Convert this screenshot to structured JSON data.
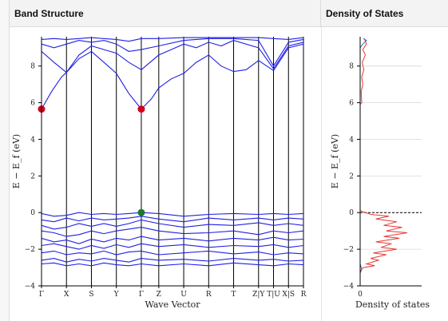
{
  "panels": {
    "band_title": "Band Structure",
    "dos_title": "Density of States"
  },
  "chart_data": [
    {
      "type": "line",
      "title": "Band Structure",
      "xlabel": "Wave Vector",
      "ylabel": "E − E_f (eV)",
      "ylim": [
        -4,
        9.6
      ],
      "yticks": [
        -4,
        -2,
        0,
        2,
        4,
        6,
        8
      ],
      "kpoint_labels": [
        "Γ",
        "X",
        "S",
        "Y",
        "Γ",
        "Z",
        "U",
        "R",
        "T",
        "Z|Y",
        "T|U",
        "X|S",
        "R"
      ],
      "kpoint_positions": [
        0,
        1,
        2,
        3,
        4,
        4.7,
        5.7,
        6.7,
        7.7,
        8.7,
        9.3,
        9.9,
        10.5
      ],
      "band_color": "#1f1fe6",
      "bands": [
        [
          [
            0,
            -0.05
          ],
          [
            0.5,
            -0.2
          ],
          [
            1,
            -0.15
          ],
          [
            1.5,
            0.0
          ],
          [
            2,
            -0.1
          ],
          [
            2.5,
            -0.05
          ],
          [
            3,
            -0.1
          ],
          [
            3.5,
            -0.05
          ],
          [
            4,
            0.0
          ],
          [
            4.7,
            -0.05
          ],
          [
            5.7,
            -0.2
          ],
          [
            6.7,
            -0.1
          ],
          [
            7.7,
            -0.05
          ],
          [
            8.7,
            -0.1
          ],
          [
            9.3,
            -0.05
          ],
          [
            9.9,
            -0.1
          ],
          [
            10.5,
            -0.05
          ]
        ],
        [
          [
            0,
            -0.4
          ],
          [
            0.5,
            -0.5
          ],
          [
            1,
            -0.3
          ],
          [
            1.5,
            -0.45
          ],
          [
            2,
            -0.3
          ],
          [
            2.5,
            -0.4
          ],
          [
            3,
            -0.35
          ],
          [
            3.5,
            -0.3
          ],
          [
            4,
            -0.2
          ],
          [
            4.7,
            -0.35
          ],
          [
            5.7,
            -0.5
          ],
          [
            6.7,
            -0.3
          ],
          [
            7.7,
            -0.4
          ],
          [
            8.7,
            -0.3
          ],
          [
            9.3,
            -0.4
          ],
          [
            9.9,
            -0.3
          ],
          [
            10.5,
            -0.35
          ]
        ],
        [
          [
            0,
            -0.7
          ],
          [
            0.5,
            -0.9
          ],
          [
            1,
            -0.8
          ],
          [
            1.5,
            -0.6
          ],
          [
            2,
            -0.75
          ],
          [
            2.5,
            -0.6
          ],
          [
            3,
            -0.75
          ],
          [
            3.5,
            -0.6
          ],
          [
            4,
            -0.4
          ],
          [
            4.7,
            -0.6
          ],
          [
            5.7,
            -0.8
          ],
          [
            6.7,
            -0.65
          ],
          [
            7.7,
            -0.7
          ],
          [
            8.7,
            -0.55
          ],
          [
            9.3,
            -0.7
          ],
          [
            9.9,
            -0.6
          ],
          [
            10.5,
            -0.7
          ]
        ],
        [
          [
            0,
            -1.0
          ],
          [
            0.5,
            -1.1
          ],
          [
            1,
            -1.3
          ],
          [
            1.5,
            -1.2
          ],
          [
            2,
            -1.0
          ],
          [
            2.5,
            -1.15
          ],
          [
            3,
            -1.0
          ],
          [
            3.5,
            -0.9
          ],
          [
            4,
            -0.8
          ],
          [
            4.7,
            -1.0
          ],
          [
            5.7,
            -1.15
          ],
          [
            6.7,
            -1.1
          ],
          [
            7.7,
            -1.0
          ],
          [
            8.7,
            -1.2
          ],
          [
            9.3,
            -1.0
          ],
          [
            9.9,
            -1.1
          ],
          [
            10.5,
            -1.0
          ]
        ],
        [
          [
            0,
            -1.4
          ],
          [
            0.5,
            -1.6
          ],
          [
            1,
            -1.5
          ],
          [
            1.5,
            -1.7
          ],
          [
            2,
            -1.45
          ],
          [
            2.5,
            -1.6
          ],
          [
            3,
            -1.4
          ],
          [
            3.5,
            -1.5
          ],
          [
            4,
            -1.3
          ],
          [
            4.7,
            -1.5
          ],
          [
            5.7,
            -1.4
          ],
          [
            6.7,
            -1.55
          ],
          [
            7.7,
            -1.4
          ],
          [
            8.7,
            -1.5
          ],
          [
            9.3,
            -1.35
          ],
          [
            9.9,
            -1.5
          ],
          [
            10.5,
            -1.45
          ]
        ],
        [
          [
            0,
            -1.8
          ],
          [
            0.5,
            -1.7
          ],
          [
            1,
            -1.85
          ],
          [
            1.5,
            -2.0
          ],
          [
            2,
            -1.8
          ],
          [
            2.5,
            -1.95
          ],
          [
            3,
            -1.75
          ],
          [
            3.5,
            -1.9
          ],
          [
            4,
            -1.7
          ],
          [
            4.7,
            -1.85
          ],
          [
            5.7,
            -1.75
          ],
          [
            6.7,
            -1.9
          ],
          [
            7.7,
            -1.8
          ],
          [
            8.7,
            -1.85
          ],
          [
            9.3,
            -1.75
          ],
          [
            9.9,
            -1.9
          ],
          [
            10.5,
            -1.8
          ]
        ],
        [
          [
            0,
            -2.2
          ],
          [
            0.5,
            -2.1
          ],
          [
            1,
            -2.3
          ],
          [
            1.5,
            -2.2
          ],
          [
            2,
            -2.25
          ],
          [
            2.5,
            -2.1
          ],
          [
            3,
            -2.3
          ],
          [
            3.5,
            -2.15
          ],
          [
            4,
            -2.1
          ],
          [
            4.7,
            -2.3
          ],
          [
            5.7,
            -2.2
          ],
          [
            6.7,
            -2.1
          ],
          [
            7.7,
            -2.25
          ],
          [
            8.7,
            -2.15
          ],
          [
            9.3,
            -2.3
          ],
          [
            9.9,
            -2.2
          ],
          [
            10.5,
            -2.25
          ]
        ],
        [
          [
            0,
            -2.6
          ],
          [
            0.5,
            -2.5
          ],
          [
            1,
            -2.7
          ],
          [
            1.5,
            -2.55
          ],
          [
            2,
            -2.65
          ],
          [
            2.5,
            -2.5
          ],
          [
            3,
            -2.6
          ],
          [
            3.5,
            -2.7
          ],
          [
            4,
            -2.5
          ],
          [
            4.7,
            -2.6
          ],
          [
            5.7,
            -2.55
          ],
          [
            6.7,
            -2.65
          ],
          [
            7.7,
            -2.5
          ],
          [
            8.7,
            -2.6
          ],
          [
            9.3,
            -2.55
          ],
          [
            9.9,
            -2.65
          ],
          [
            10.5,
            -2.6
          ]
        ],
        [
          [
            0,
            -2.8
          ],
          [
            0.5,
            -2.75
          ],
          [
            1,
            -2.9
          ],
          [
            1.5,
            -2.8
          ],
          [
            2,
            -2.9
          ],
          [
            2.5,
            -2.75
          ],
          [
            3,
            -2.85
          ],
          [
            3.5,
            -2.9
          ],
          [
            4,
            -2.8
          ],
          [
            4.7,
            -2.9
          ],
          [
            5.7,
            -2.8
          ],
          [
            6.7,
            -2.9
          ],
          [
            7.7,
            -2.75
          ],
          [
            8.7,
            -2.85
          ],
          [
            9.3,
            -2.9
          ],
          [
            9.9,
            -2.8
          ],
          [
            10.5,
            -2.85
          ]
        ],
        [
          [
            0,
            5.65
          ],
          [
            0.4,
            6.6
          ],
          [
            0.8,
            7.4
          ],
          [
            1,
            7.65
          ],
          [
            1.5,
            8.4
          ],
          [
            2,
            8.8
          ],
          [
            2.5,
            8.2
          ],
          [
            3,
            7.6
          ],
          [
            3.5,
            6.5
          ],
          [
            4,
            5.65
          ],
          [
            4.4,
            6.2
          ],
          [
            4.7,
            6.8
          ],
          [
            5.2,
            7.3
          ],
          [
            5.7,
            7.6
          ],
          [
            6.2,
            8.2
          ],
          [
            6.7,
            8.6
          ],
          [
            7.2,
            8.0
          ],
          [
            7.7,
            7.7
          ],
          [
            8.2,
            7.8
          ],
          [
            8.7,
            8.3
          ],
          [
            9.3,
            7.75
          ],
          [
            9.9,
            9.0
          ],
          [
            10.5,
            9.2
          ]
        ],
        [
          [
            0,
            8.8
          ],
          [
            0.5,
            8.2
          ],
          [
            1,
            7.65
          ],
          [
            1.5,
            8.6
          ],
          [
            2,
            9.1
          ],
          [
            2.5,
            8.9
          ],
          [
            3,
            8.7
          ],
          [
            3.5,
            8.2
          ],
          [
            4,
            7.8
          ],
          [
            4.7,
            8.6
          ],
          [
            5.2,
            8.9
          ],
          [
            5.7,
            9.2
          ],
          [
            6.2,
            9.0
          ],
          [
            6.7,
            9.3
          ],
          [
            7.2,
            9.1
          ],
          [
            7.7,
            9.4
          ],
          [
            8.7,
            9.0
          ],
          [
            9.3,
            7.85
          ],
          [
            9.9,
            9.1
          ],
          [
            10.5,
            9.3
          ]
        ],
        [
          [
            0,
            9.2
          ],
          [
            0.5,
            9.0
          ],
          [
            1,
            9.2
          ],
          [
            1.5,
            9.4
          ],
          [
            2,
            9.3
          ],
          [
            2.5,
            9.4
          ],
          [
            3,
            9.2
          ],
          [
            3.5,
            8.8
          ],
          [
            4,
            8.9
          ],
          [
            4.7,
            9.1
          ],
          [
            5.7,
            9.4
          ],
          [
            6.7,
            9.5
          ],
          [
            7.7,
            9.5
          ],
          [
            8.7,
            9.4
          ],
          [
            9.3,
            8.0
          ],
          [
            9.9,
            9.3
          ],
          [
            10.5,
            9.45
          ]
        ],
        [
          [
            0,
            9.45
          ],
          [
            0.5,
            9.5
          ],
          [
            1,
            9.45
          ],
          [
            1.5,
            9.5
          ],
          [
            2,
            9.55
          ],
          [
            2.5,
            9.5
          ],
          [
            3,
            9.45
          ],
          [
            3.5,
            9.35
          ],
          [
            4,
            9.5
          ],
          [
            4.7,
            9.5
          ],
          [
            5.7,
            9.55
          ],
          [
            6.7,
            9.55
          ],
          [
            7.7,
            9.55
          ],
          [
            8.7,
            9.55
          ],
          [
            9.3,
            9.5
          ],
          [
            9.9,
            9.45
          ],
          [
            10.5,
            9.55
          ]
        ]
      ],
      "markers": [
        {
          "x": 0,
          "y": 5.65,
          "color": "#d0021b"
        },
        {
          "x": 4,
          "y": 5.65,
          "color": "#d0021b"
        },
        {
          "x": 4,
          "y": 0.0,
          "color": "#1a7a2a"
        }
      ]
    },
    {
      "type": "line",
      "title": "Density of States",
      "xlabel": "Density of states",
      "ylabel": "E − E_f (eV)",
      "ylim": [
        -4,
        9.6
      ],
      "yticks": [
        -4,
        -2,
        0,
        2,
        4,
        6,
        8
      ],
      "xticks": [
        0
      ],
      "fermi_line": 0,
      "series": [
        {
          "color": "#e53935",
          "points": [
            [
              0,
              -4
            ],
            [
              0,
              -3.2
            ],
            [
              0.06,
              -3.0
            ],
            [
              0.28,
              -2.9
            ],
            [
              0.12,
              -2.8
            ],
            [
              0.35,
              -2.6
            ],
            [
              0.2,
              -2.5
            ],
            [
              0.5,
              -2.3
            ],
            [
              0.25,
              -2.2
            ],
            [
              0.7,
              -2.0
            ],
            [
              0.4,
              -1.9
            ],
            [
              0.6,
              -1.7
            ],
            [
              0.3,
              -1.6
            ],
            [
              0.75,
              -1.4
            ],
            [
              0.45,
              -1.3
            ],
            [
              0.9,
              -1.1
            ],
            [
              0.5,
              -1.0
            ],
            [
              0.8,
              -0.8
            ],
            [
              0.45,
              -0.7
            ],
            [
              0.7,
              -0.5
            ],
            [
              0.3,
              -0.35
            ],
            [
              0.55,
              -0.2
            ],
            [
              0.2,
              -0.1
            ],
            [
              0.1,
              0.0
            ],
            [
              0,
              0.1
            ],
            [
              0,
              5.9
            ],
            [
              0.03,
              6.0
            ],
            [
              0.02,
              6.6
            ],
            [
              0.05,
              7.0
            ],
            [
              0.03,
              7.4
            ],
            [
              0.07,
              7.8
            ],
            [
              0.04,
              8.2
            ],
            [
              0.1,
              8.6
            ],
            [
              0.05,
              8.9
            ],
            [
              0.12,
              9.2
            ],
            [
              0.08,
              9.5
            ]
          ]
        },
        {
          "color": "#1f77b4",
          "points": [
            [
              0,
              -4
            ],
            [
              0,
              -3.3
            ],
            [
              0.03,
              -3.1
            ],
            [
              0.01,
              -2.9
            ],
            [
              0,
              -2.8
            ],
            [
              0,
              9.0
            ],
            [
              0.05,
              9.2
            ],
            [
              0.12,
              9.4
            ],
            [
              0.06,
              9.5
            ]
          ]
        }
      ]
    }
  ]
}
